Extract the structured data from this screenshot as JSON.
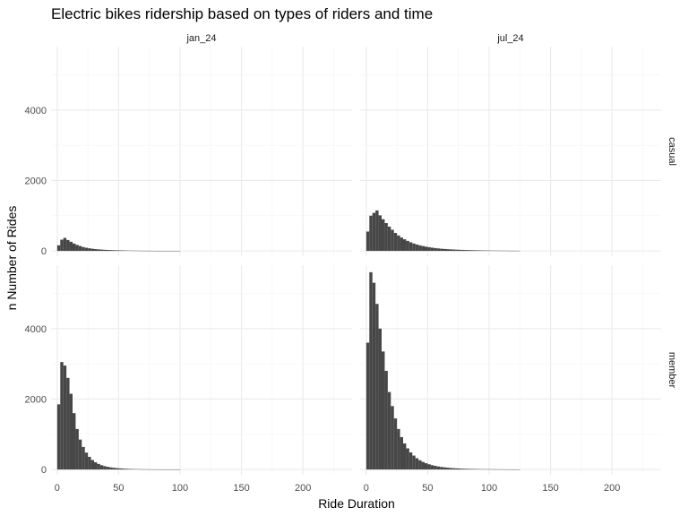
{
  "chart_data": {
    "type": "bar",
    "title": "Electric bikes ridership based on types of riders and time",
    "xlabel": "Ride Duration",
    "ylabel": "n Number of Rides",
    "xlim": [
      -5,
      240
    ],
    "ylim": [
      -150,
      5800
    ],
    "x_ticks": [
      0,
      50,
      100,
      150,
      200
    ],
    "y_ticks": [
      0,
      2000,
      4000
    ],
    "bin_width": 2.5,
    "grid": true,
    "columns": [
      "jan_24",
      "jul_24"
    ],
    "rows": [
      "casual",
      "member"
    ],
    "panels": [
      {
        "column": "jan_24",
        "row": "casual",
        "values": [
          160,
          320,
          370,
          310,
          260,
          210,
          170,
          140,
          110,
          90,
          75,
          62,
          52,
          44,
          38,
          32,
          28,
          24,
          21,
          18,
          16,
          14,
          12,
          10,
          9,
          8,
          7,
          6,
          5,
          5,
          4,
          4,
          3,
          3,
          3,
          2,
          2,
          2,
          2,
          2
        ]
      },
      {
        "column": "jul_24",
        "row": "casual",
        "values": [
          550,
          1000,
          1080,
          1150,
          1010,
          900,
          790,
          690,
          600,
          510,
          440,
          380,
          330,
          285,
          245,
          210,
          182,
          158,
          138,
          120,
          105,
          92,
          81,
          71,
          63,
          56,
          50,
          45,
          40,
          36,
          32,
          29,
          26,
          23,
          21,
          19,
          17,
          15,
          14,
          12,
          11,
          10,
          9,
          8,
          7,
          7,
          6,
          5,
          5,
          4
        ]
      },
      {
        "column": "jan_24",
        "row": "member",
        "values": [
          1850,
          3050,
          2950,
          2600,
          2150,
          1600,
          1150,
          850,
          640,
          480,
          360,
          270,
          205,
          158,
          122,
          95,
          75,
          60,
          48,
          39,
          32,
          26,
          21,
          17,
          14,
          12,
          10,
          8,
          7,
          6,
          5,
          4,
          4,
          3,
          3,
          2,
          2,
          2,
          2,
          2
        ]
      },
      {
        "column": "jul_24",
        "row": "member",
        "values": [
          3600,
          5600,
          5300,
          4700,
          4000,
          3350,
          2800,
          2200,
          1800,
          1450,
          1150,
          920,
          740,
          600,
          485,
          395,
          320,
          262,
          215,
          178,
          148,
          123,
          103,
          86,
          72,
          61,
          52,
          44,
          38,
          33,
          28,
          24,
          21,
          18,
          16,
          14,
          12,
          11,
          10,
          9,
          8,
          7,
          6,
          5,
          5,
          4,
          4,
          3,
          3,
          3
        ]
      }
    ]
  }
}
